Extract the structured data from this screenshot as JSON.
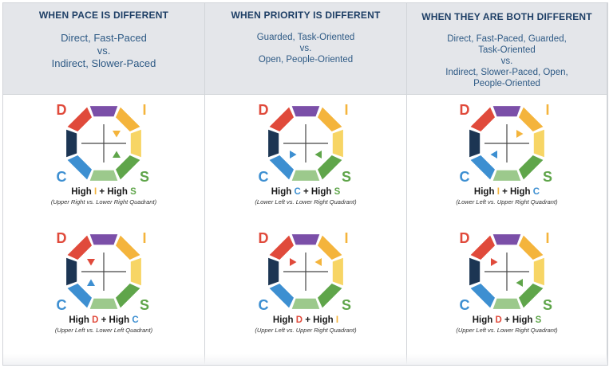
{
  "colors": {
    "D": "#e04a3b",
    "I": "#f4b43c",
    "S": "#5fa54a",
    "C": "#3d8fd1",
    "purple": "#7b4fa8",
    "navy": "#1c3553"
  },
  "letters": {
    "D": "D",
    "I": "I",
    "S": "S",
    "C": "C"
  },
  "connector": "+ High",
  "columns": [
    {
      "heading": "WHEN PACE IS DIFFERENT",
      "description": [
        "Direct, Fast-Paced",
        "vs.",
        "Indirect, Slower-Paced"
      ],
      "cases": [
        {
          "pair": [
            "I",
            "S"
          ],
          "first": "High",
          "first_letter": "I",
          "second_letter": "S",
          "note": "(Upper Right vs. Lower Right Quadrant)"
        },
        {
          "pair": [
            "D",
            "C"
          ],
          "first": "High",
          "first_letter": "D",
          "second_letter": "C",
          "note": "(Upper Left vs. Lower Left Quadrant)"
        }
      ]
    },
    {
      "heading": "WHEN PRIORITY IS DIFFERENT",
      "description": [
        "Guarded, Task-Oriented",
        "vs.",
        "Open, People-Oriented"
      ],
      "cases": [
        {
          "pair": [
            "C",
            "S"
          ],
          "first": "High",
          "first_letter": "C",
          "second_letter": "S",
          "note": "(Lower Left vs. Lower Right Quadrant)"
        },
        {
          "pair": [
            "D",
            "I"
          ],
          "first": "High",
          "first_letter": "D",
          "second_letter": "I",
          "note": "(Upper Left vs. Upper Right Quadrant)"
        }
      ]
    },
    {
      "heading": "WHEN THEY ARE BOTH DIFFERENT",
      "description": [
        "Direct, Fast-Paced, Guarded,",
        "Task-Oriented",
        "vs.",
        "Indirect, Slower-Paced, Open,",
        "People-Oriented"
      ],
      "cases": [
        {
          "pair": [
            "I",
            "C"
          ],
          "first": "High",
          "first_letter": "I",
          "second_letter": "C",
          "note": "(Lower Left vs. Upper Right Quadrant)"
        },
        {
          "pair": [
            "D",
            "S"
          ],
          "first": "High",
          "first_letter": "D",
          "second_letter": "S",
          "note": "(Upper Left vs. Lower Right Quadrant)"
        }
      ]
    }
  ]
}
